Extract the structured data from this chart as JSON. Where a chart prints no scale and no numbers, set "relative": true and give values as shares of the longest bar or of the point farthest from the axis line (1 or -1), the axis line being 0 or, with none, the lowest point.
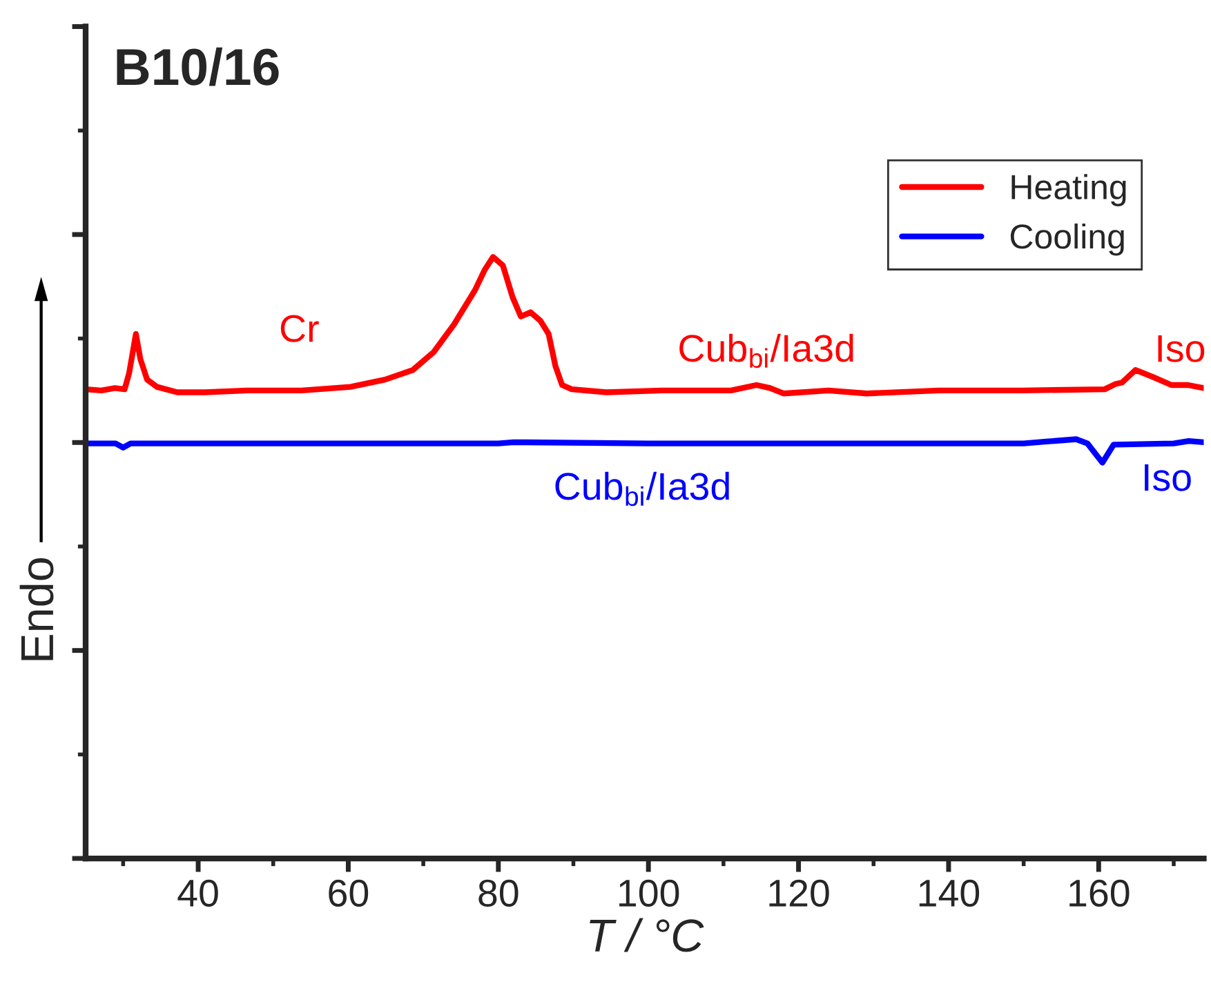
{
  "chart_data": {
    "type": "line",
    "title": "B10/16",
    "xlabel": "T / °C",
    "ylabel": "Endo",
    "relative": true,
    "xlim": [
      25,
      174
    ],
    "xticks": [
      40,
      60,
      80,
      100,
      120,
      140,
      160
    ],
    "tick_labels": "x",
    "grid": false,
    "legend": "top right",
    "marker": "none",
    "line_style": "solid",
    "series": [
      {
        "name": "Heating",
        "color": "#ff0000",
        "x": [
          25,
          27.1,
          28.9,
          30.2,
          30.8,
          31.7,
          32.3,
          33.2,
          34.5,
          37.2,
          40.9,
          46.5,
          53.8,
          60.3,
          64.9,
          68.6,
          71.4,
          74.1,
          76.9,
          78.2,
          79.3,
          80.6,
          81.9,
          83.0,
          84.3,
          85.6,
          86.7,
          87.6,
          88.5,
          89.8,
          94.4,
          101.8,
          111.0,
          114.4,
          116.2,
          118.0,
          124.0,
          129.1,
          138.7,
          149.8,
          160.8,
          162.3,
          163.1,
          164.9,
          167.3,
          169.7,
          171.9,
          174
        ],
        "values": [
          0.78,
          0.778,
          0.782,
          0.78,
          0.807,
          0.872,
          0.83,
          0.796,
          0.784,
          0.775,
          0.775,
          0.778,
          0.778,
          0.784,
          0.796,
          0.812,
          0.842,
          0.888,
          0.945,
          0.979,
          1.0,
          0.986,
          0.933,
          0.901,
          0.908,
          0.894,
          0.872,
          0.819,
          0.787,
          0.78,
          0.775,
          0.778,
          0.778,
          0.787,
          0.782,
          0.773,
          0.778,
          0.773,
          0.778,
          0.778,
          0.78,
          0.789,
          0.791,
          0.812,
          0.8,
          0.787,
          0.787,
          0.782
        ]
      },
      {
        "name": "Cooling",
        "color": "#0000ff",
        "x": [
          25,
          29,
          30,
          31,
          60,
          80,
          82,
          100,
          150,
          153,
          157,
          158.5,
          160.5,
          162,
          170,
          172,
          174
        ],
        "values": [
          0.69,
          0.69,
          0.683,
          0.69,
          0.69,
          0.69,
          0.692,
          0.69,
          0.69,
          0.693,
          0.697,
          0.69,
          0.658,
          0.688,
          0.69,
          0.694,
          0.692
        ]
      }
    ],
    "annotations": [
      "Cr",
      "Cub$_{bi}$/Ia3d",
      "Iso",
      "Cub$_{bi}$/Ia3d",
      "Iso"
    ]
  }
}
